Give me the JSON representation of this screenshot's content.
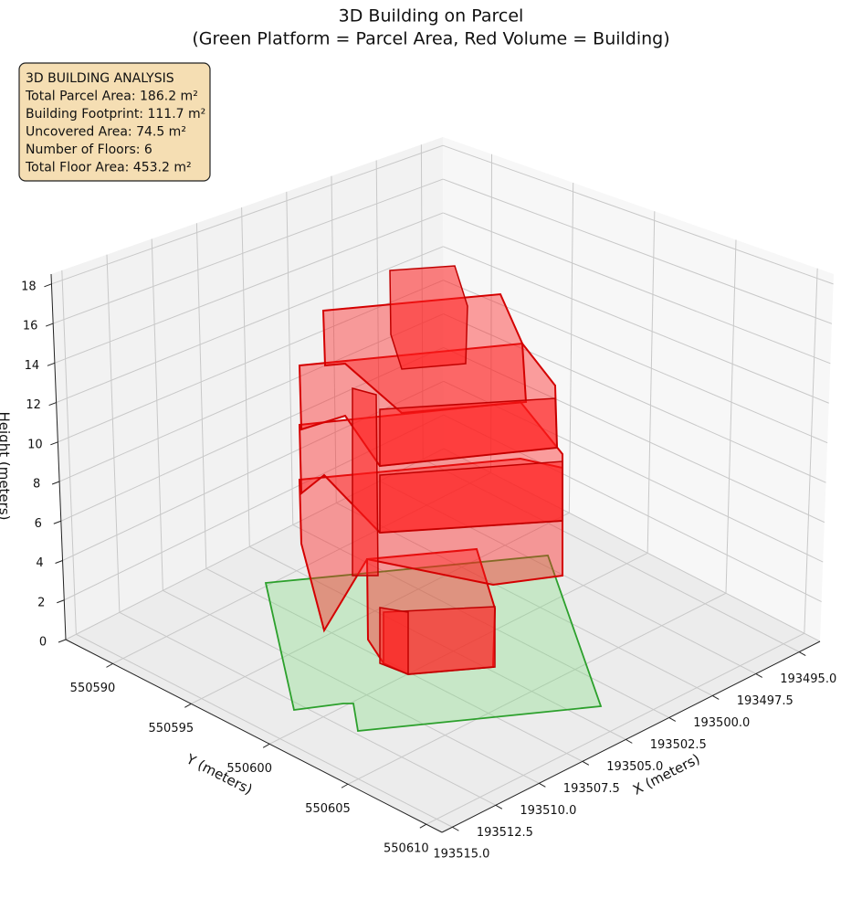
{
  "chart_data": {
    "type": "3d",
    "title": "3D Building on Parcel",
    "subtitle": "(Green Platform = Parcel Area, Red Volume = Building)",
    "xlabel": "X (meters)",
    "ylabel": "Y (meters)",
    "zlabel": "Height (meters)",
    "annotation": [
      "3D BUILDING ANALYSIS",
      "Total Parcel Area: 186.2 m²",
      "Building Footprint: 111.7 m²",
      "Uncovered Area: 74.5 m²",
      "Number of Floors: 6",
      "Total Floor Area: 453.2 m²"
    ],
    "xlim": [
      193493.8,
      193515.6
    ],
    "ylim": [
      550587,
      550611
    ],
    "zlim": [
      0,
      18.5
    ],
    "xticks": [
      {
        "value": 193495,
        "label": "193495.0"
      },
      {
        "value": 193497.5,
        "label": "193497.5"
      },
      {
        "value": 193500,
        "label": "193500.0"
      },
      {
        "value": 193502.5,
        "label": "193502.5"
      },
      {
        "value": 193505,
        "label": "193505.0"
      },
      {
        "value": 193507.5,
        "label": "193507.5"
      },
      {
        "value": 193510,
        "label": "193510.0"
      },
      {
        "value": 193512.5,
        "label": "193512.5"
      },
      {
        "value": 193515,
        "label": "193515.0"
      }
    ],
    "yticks": [
      550590,
      550595,
      550600,
      550605,
      550610
    ],
    "zticks": [
      0,
      2,
      4,
      6,
      8,
      10,
      12,
      14,
      16,
      18
    ],
    "grid": true
  }
}
